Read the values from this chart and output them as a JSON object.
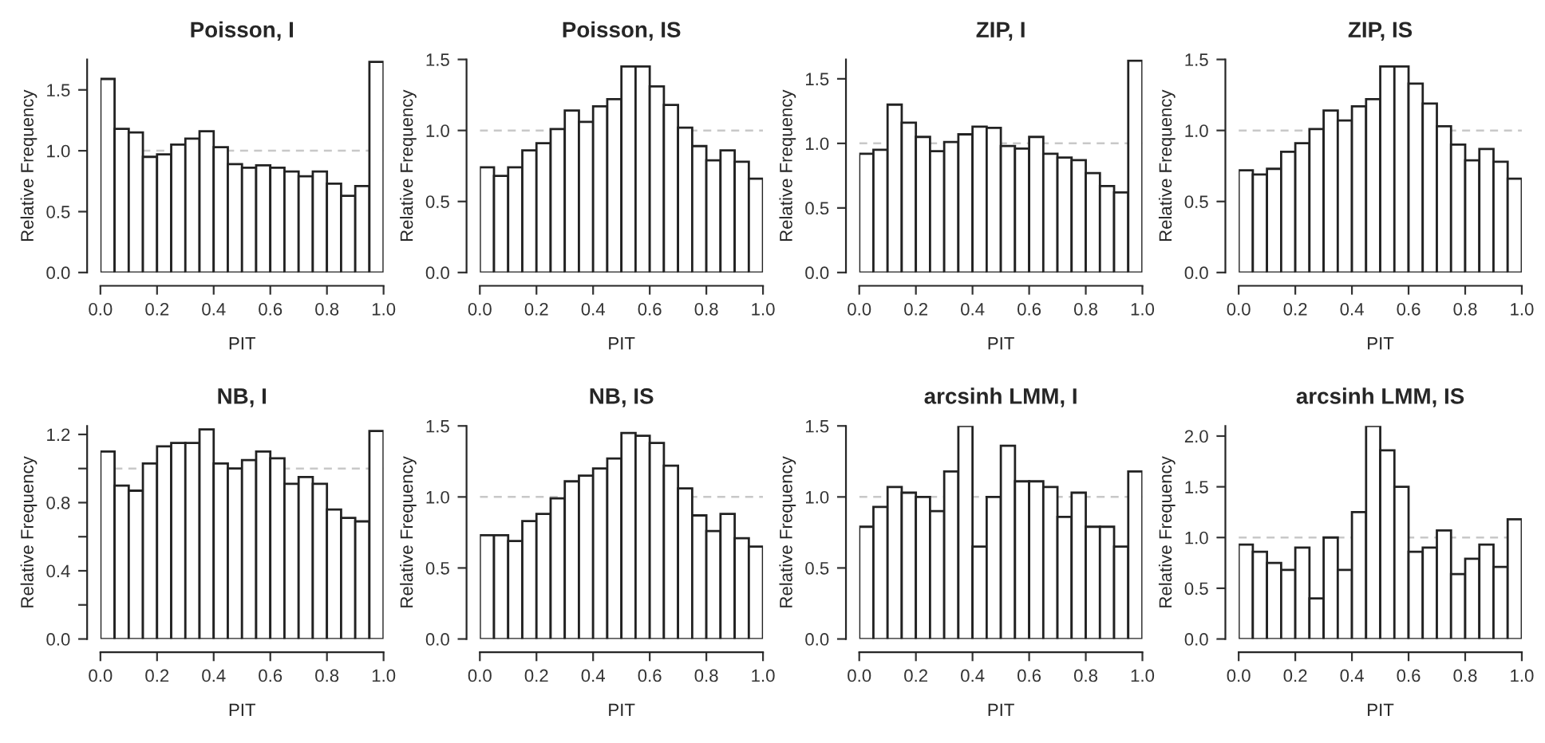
{
  "chart_data": [
    {
      "type": "histogram",
      "title": "Poisson, I",
      "xlabel": "PIT",
      "ylabel": "Relative Frequency",
      "bins": [
        0,
        0.05,
        0.1,
        0.15,
        0.2,
        0.25,
        0.3,
        0.35,
        0.4,
        0.45,
        0.5,
        0.55,
        0.6,
        0.65,
        0.7,
        0.75,
        0.8,
        0.85,
        0.9,
        0.95,
        1.0
      ],
      "values": [
        1.59,
        1.18,
        1.15,
        0.95,
        0.97,
        1.05,
        1.1,
        1.16,
        1.03,
        0.89,
        0.86,
        0.88,
        0.86,
        0.83,
        0.79,
        0.83,
        0.73,
        0.63,
        0.71,
        1.73
      ],
      "color": "#ffffff",
      "xlim": [
        0,
        1
      ],
      "ylim": [
        0,
        1.75
      ],
      "xticks": [
        {
          "value": 0,
          "label": "0.0"
        },
        {
          "value": 0.2,
          "label": "0.2"
        },
        {
          "value": 0.4,
          "label": "0.4"
        },
        {
          "value": 0.6,
          "label": "0.6"
        },
        {
          "value": 0.8,
          "label": "0.8"
        },
        {
          "value": 1,
          "label": "1.0"
        }
      ],
      "yticks": [
        {
          "value": 0,
          "label": "0.0"
        },
        {
          "value": 0.5,
          "label": "0.5"
        },
        {
          "value": 1,
          "label": "1.0"
        },
        {
          "value": 1.5,
          "label": "1.5"
        }
      ],
      "ref_lines": [
        {
          "axis": "y",
          "value": 1,
          "color": "#c8c8c8",
          "line_style": "dashed"
        }
      ]
    },
    {
      "type": "histogram",
      "title": "Poisson, IS",
      "xlabel": "PIT",
      "ylabel": "Relative Frequency",
      "bins": [
        0,
        0.05,
        0.1,
        0.15,
        0.2,
        0.25,
        0.3,
        0.35,
        0.4,
        0.45,
        0.5,
        0.55,
        0.6,
        0.65,
        0.7,
        0.75,
        0.8,
        0.85,
        0.9,
        0.95,
        1.0
      ],
      "values": [
        0.74,
        0.68,
        0.74,
        0.86,
        0.91,
        1.01,
        1.14,
        1.06,
        1.17,
        1.22,
        1.45,
        1.45,
        1.31,
        1.18,
        1.02,
        0.89,
        0.79,
        0.86,
        0.78,
        0.66
      ],
      "color": "#ffffff",
      "xlim": [
        0,
        1
      ],
      "ylim": [
        0,
        1.5
      ],
      "xticks": [
        {
          "value": 0,
          "label": "0.0"
        },
        {
          "value": 0.2,
          "label": "0.2"
        },
        {
          "value": 0.4,
          "label": "0.4"
        },
        {
          "value": 0.6,
          "label": "0.6"
        },
        {
          "value": 0.8,
          "label": "0.8"
        },
        {
          "value": 1,
          "label": "1.0"
        }
      ],
      "yticks": [
        {
          "value": 0,
          "label": "0.0"
        },
        {
          "value": 0.5,
          "label": "0.5"
        },
        {
          "value": 1,
          "label": "1.0"
        },
        {
          "value": 1.5,
          "label": "1.5"
        }
      ],
      "ref_lines": [
        {
          "axis": "y",
          "value": 1,
          "color": "#c8c8c8",
          "line_style": "dashed"
        }
      ]
    },
    {
      "type": "histogram",
      "title": "ZIP, I",
      "xlabel": "PIT",
      "ylabel": "Relative Frequency",
      "bins": [
        0,
        0.05,
        0.1,
        0.15,
        0.2,
        0.25,
        0.3,
        0.35,
        0.4,
        0.45,
        0.5,
        0.55,
        0.6,
        0.65,
        0.7,
        0.75,
        0.8,
        0.85,
        0.9,
        0.95,
        1.0
      ],
      "values": [
        0.92,
        0.95,
        1.3,
        1.16,
        1.05,
        0.94,
        1.01,
        1.07,
        1.13,
        1.12,
        0.98,
        0.96,
        1.05,
        0.92,
        0.89,
        0.87,
        0.77,
        0.67,
        0.62,
        1.64
      ],
      "color": "#ffffff",
      "xlim": [
        0,
        1
      ],
      "ylim": [
        0,
        1.65
      ],
      "xticks": [
        {
          "value": 0,
          "label": "0.0"
        },
        {
          "value": 0.2,
          "label": "0.2"
        },
        {
          "value": 0.4,
          "label": "0.4"
        },
        {
          "value": 0.6,
          "label": "0.6"
        },
        {
          "value": 0.8,
          "label": "0.8"
        },
        {
          "value": 1,
          "label": "1.0"
        }
      ],
      "yticks": [
        {
          "value": 0,
          "label": "0.0"
        },
        {
          "value": 0.5,
          "label": "0.5"
        },
        {
          "value": 1,
          "label": "1.0"
        },
        {
          "value": 1.5,
          "label": "1.5"
        }
      ],
      "ref_lines": [
        {
          "axis": "y",
          "value": 1,
          "color": "#c8c8c8",
          "line_style": "dashed"
        }
      ]
    },
    {
      "type": "histogram",
      "title": "ZIP, IS",
      "xlabel": "PIT",
      "ylabel": "Relative Frequency",
      "bins": [
        0,
        0.05,
        0.1,
        0.15,
        0.2,
        0.25,
        0.3,
        0.35,
        0.4,
        0.45,
        0.5,
        0.55,
        0.6,
        0.65,
        0.7,
        0.75,
        0.8,
        0.85,
        0.9,
        0.95,
        1.0
      ],
      "values": [
        0.72,
        0.69,
        0.73,
        0.85,
        0.91,
        1.01,
        1.14,
        1.07,
        1.17,
        1.22,
        1.45,
        1.45,
        1.33,
        1.19,
        1.03,
        0.9,
        0.79,
        0.87,
        0.78,
        0.66
      ],
      "color": "#ffffff",
      "xlim": [
        0,
        1
      ],
      "ylim": [
        0,
        1.5
      ],
      "xticks": [
        {
          "value": 0,
          "label": "0.0"
        },
        {
          "value": 0.2,
          "label": "0.2"
        },
        {
          "value": 0.4,
          "label": "0.4"
        },
        {
          "value": 0.6,
          "label": "0.6"
        },
        {
          "value": 0.8,
          "label": "0.8"
        },
        {
          "value": 1,
          "label": "1.0"
        }
      ],
      "yticks": [
        {
          "value": 0,
          "label": "0.0"
        },
        {
          "value": 0.5,
          "label": "0.5"
        },
        {
          "value": 1,
          "label": "1.0"
        },
        {
          "value": 1.5,
          "label": "1.5"
        }
      ],
      "ref_lines": [
        {
          "axis": "y",
          "value": 1,
          "color": "#c8c8c8",
          "line_style": "dashed"
        }
      ]
    },
    {
      "type": "histogram",
      "title": "NB, I",
      "xlabel": "PIT",
      "ylabel": "Relative Frequency",
      "bins": [
        0,
        0.05,
        0.1,
        0.15,
        0.2,
        0.25,
        0.3,
        0.35,
        0.4,
        0.45,
        0.5,
        0.55,
        0.6,
        0.65,
        0.7,
        0.75,
        0.8,
        0.85,
        0.9,
        0.95,
        1.0
      ],
      "values": [
        1.1,
        0.9,
        0.87,
        1.03,
        1.13,
        1.15,
        1.15,
        1.23,
        1.03,
        1.0,
        1.05,
        1.1,
        1.06,
        0.91,
        0.95,
        0.91,
        0.76,
        0.71,
        0.69,
        1.22
      ],
      "color": "#ffffff",
      "xlim": [
        0,
        1
      ],
      "ylim": [
        0,
        1.25
      ],
      "xticks": [
        {
          "value": 0,
          "label": "0.0"
        },
        {
          "value": 0.2,
          "label": "0.2"
        },
        {
          "value": 0.4,
          "label": "0.4"
        },
        {
          "value": 0.6,
          "label": "0.6"
        },
        {
          "value": 0.8,
          "label": "0.8"
        },
        {
          "value": 1,
          "label": "1.0"
        }
      ],
      "yticks": [
        {
          "value": 0,
          "label": "0.0"
        },
        {
          "value": 0.2,
          "label": null
        },
        {
          "value": 0.4,
          "label": "0.4"
        },
        {
          "value": 0.6,
          "label": null
        },
        {
          "value": 0.8,
          "label": "0.8"
        },
        {
          "value": 1.0,
          "label": null
        },
        {
          "value": 1.2,
          "label": "1.2"
        }
      ],
      "ref_lines": [
        {
          "axis": "y",
          "value": 1,
          "color": "#c8c8c8",
          "line_style": "dashed"
        }
      ]
    },
    {
      "type": "histogram",
      "title": "NB, IS",
      "xlabel": "PIT",
      "ylabel": "Relative Frequency",
      "bins": [
        0,
        0.05,
        0.1,
        0.15,
        0.2,
        0.25,
        0.3,
        0.35,
        0.4,
        0.45,
        0.5,
        0.55,
        0.6,
        0.65,
        0.7,
        0.75,
        0.8,
        0.85,
        0.9,
        0.95,
        1.0
      ],
      "values": [
        0.73,
        0.73,
        0.69,
        0.83,
        0.88,
        0.99,
        1.11,
        1.15,
        1.2,
        1.27,
        1.45,
        1.43,
        1.38,
        1.22,
        1.06,
        0.87,
        0.76,
        0.88,
        0.71,
        0.65
      ],
      "color": "#ffffff",
      "xlim": [
        0,
        1
      ],
      "ylim": [
        0,
        1.5
      ],
      "xticks": [
        {
          "value": 0,
          "label": "0.0"
        },
        {
          "value": 0.2,
          "label": "0.2"
        },
        {
          "value": 0.4,
          "label": "0.4"
        },
        {
          "value": 0.6,
          "label": "0.6"
        },
        {
          "value": 0.8,
          "label": "0.8"
        },
        {
          "value": 1,
          "label": "1.0"
        }
      ],
      "yticks": [
        {
          "value": 0,
          "label": "0.0"
        },
        {
          "value": 0.5,
          "label": "0.5"
        },
        {
          "value": 1,
          "label": "1.0"
        },
        {
          "value": 1.5,
          "label": "1.5"
        }
      ],
      "ref_lines": [
        {
          "axis": "y",
          "value": 1,
          "color": "#c8c8c8",
          "line_style": "dashed"
        }
      ]
    },
    {
      "type": "histogram",
      "title": "arcsinh LMM, I",
      "xlabel": "PIT",
      "ylabel": "Relative Frequency",
      "bins": [
        0,
        0.05,
        0.1,
        0.15,
        0.2,
        0.25,
        0.3,
        0.35,
        0.4,
        0.45,
        0.5,
        0.55,
        0.6,
        0.65,
        0.7,
        0.75,
        0.8,
        0.85,
        0.9,
        0.95,
        1.0
      ],
      "values": [
        0.79,
        0.93,
        1.07,
        1.03,
        1.0,
        0.9,
        1.18,
        1.5,
        0.65,
        1.0,
        1.36,
        1.11,
        1.11,
        1.07,
        0.86,
        1.03,
        0.79,
        0.79,
        0.65,
        1.18
      ],
      "color": "#ffffff",
      "xlim": [
        0,
        1
      ],
      "ylim": [
        0,
        1.5
      ],
      "xticks": [
        {
          "value": 0,
          "label": "0.0"
        },
        {
          "value": 0.2,
          "label": "0.2"
        },
        {
          "value": 0.4,
          "label": "0.4"
        },
        {
          "value": 0.6,
          "label": "0.6"
        },
        {
          "value": 0.8,
          "label": "0.8"
        },
        {
          "value": 1,
          "label": "1.0"
        }
      ],
      "yticks": [
        {
          "value": 0,
          "label": "0.0"
        },
        {
          "value": 0.5,
          "label": "0.5"
        },
        {
          "value": 1,
          "label": "1.0"
        },
        {
          "value": 1.5,
          "label": "1.5"
        }
      ],
      "ref_lines": [
        {
          "axis": "y",
          "value": 1,
          "color": "#c8c8c8",
          "line_style": "dashed"
        }
      ]
    },
    {
      "type": "histogram",
      "title": "arcsinh LMM, IS",
      "xlabel": "PIT",
      "ylabel": "Relative Frequency",
      "bins": [
        0,
        0.05,
        0.1,
        0.15,
        0.2,
        0.25,
        0.3,
        0.35,
        0.4,
        0.45,
        0.5,
        0.55,
        0.6,
        0.65,
        0.7,
        0.75,
        0.8,
        0.85,
        0.9,
        0.95,
        1.0
      ],
      "values": [
        0.93,
        0.86,
        0.75,
        0.68,
        0.9,
        0.4,
        1.0,
        0.68,
        1.25,
        2.1,
        1.86,
        1.5,
        0.86,
        0.9,
        1.07,
        0.64,
        0.79,
        0.93,
        0.71,
        1.18
      ],
      "color": "#ffffff",
      "xlim": [
        0,
        1
      ],
      "ylim": [
        0,
        2.1
      ],
      "xticks": [
        {
          "value": 0,
          "label": "0.0"
        },
        {
          "value": 0.2,
          "label": "0.2"
        },
        {
          "value": 0.4,
          "label": "0.4"
        },
        {
          "value": 0.6,
          "label": "0.6"
        },
        {
          "value": 0.8,
          "label": "0.8"
        },
        {
          "value": 1,
          "label": "1.0"
        }
      ],
      "yticks": [
        {
          "value": 0,
          "label": "0.0"
        },
        {
          "value": 0.5,
          "label": "0.5"
        },
        {
          "value": 1,
          "label": "1.0"
        },
        {
          "value": 1.5,
          "label": "1.5"
        },
        {
          "value": 2,
          "label": "2.0"
        }
      ],
      "ref_lines": [
        {
          "axis": "y",
          "value": 1,
          "color": "#c8c8c8",
          "line_style": "dashed"
        }
      ]
    }
  ]
}
